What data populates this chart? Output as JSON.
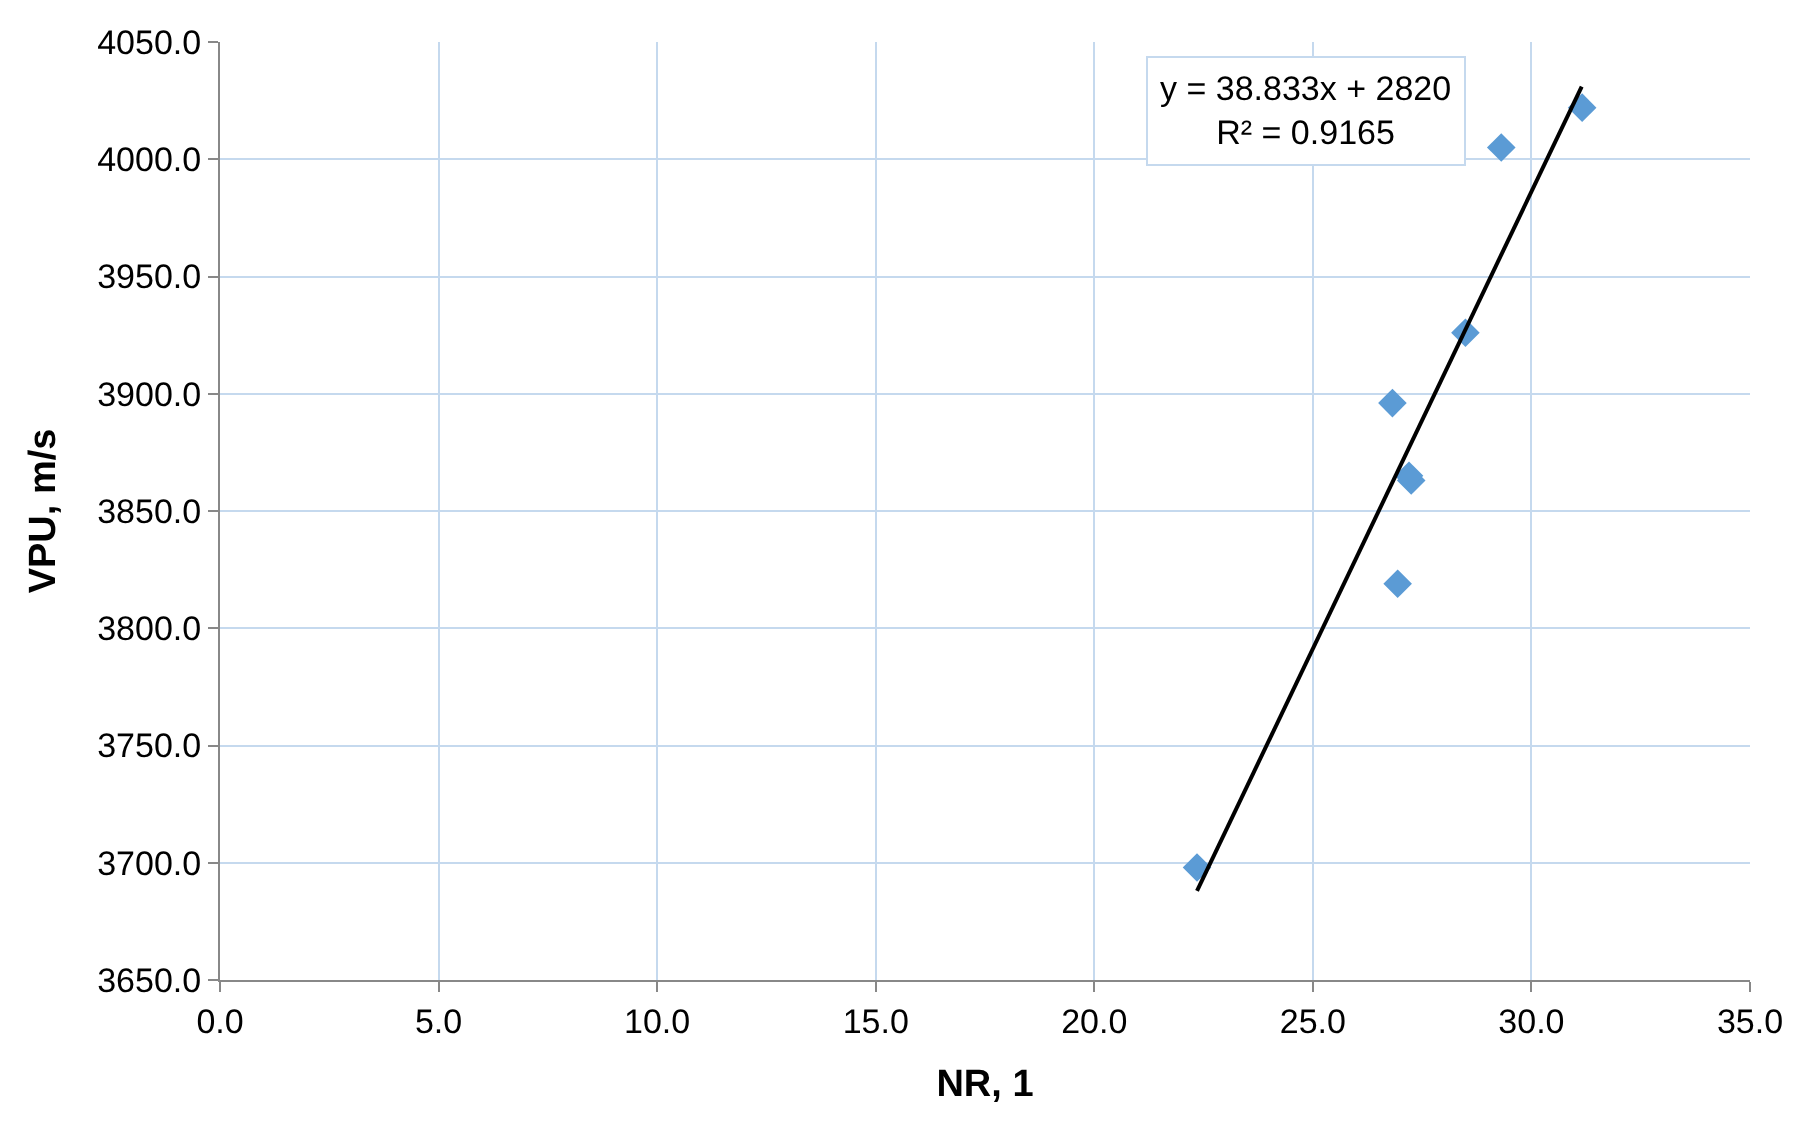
{
  "chart_data": {
    "type": "scatter",
    "xlabel": "NR, 1",
    "ylabel": "VPU, m/s",
    "annotations": [
      "y = 38.833x + 2820",
      "R² = 0.9165"
    ],
    "series": [
      {
        "color": "#5b9bd5",
        "marker": "diamond",
        "x": [
          22.35,
          26.82,
          27.25,
          27.2,
          26.94,
          28.49,
          29.31,
          31.16
        ],
        "values": [
          3698,
          3896,
          3863,
          3865,
          3819,
          3926,
          4005,
          4022
        ]
      },
      {
        "type": "line",
        "color": "#000000",
        "line_style": "solid",
        "x": [
          22.35,
          31.15
        ],
        "values": [
          3688,
          4031
        ]
      }
    ],
    "xlim": [
      0,
      35
    ],
    "xticks": [
      {
        "value": 0,
        "label": "0.0"
      },
      {
        "value": 5,
        "label": "5.0"
      },
      {
        "value": 10,
        "label": "10.0"
      },
      {
        "value": 15,
        "label": "15.0"
      },
      {
        "value": 20,
        "label": "20.0"
      },
      {
        "value": 25,
        "label": "25.0"
      },
      {
        "value": 30,
        "label": "30.0"
      },
      {
        "value": 35,
        "label": "35.0"
      }
    ],
    "ylim": [
      3650,
      4050
    ],
    "yticks": [
      {
        "value": 3650,
        "label": "3650.0"
      },
      {
        "value": 3700,
        "label": "3700.0"
      },
      {
        "value": 3750,
        "label": "3750.0"
      },
      {
        "value": 3800,
        "label": "3800.0"
      },
      {
        "value": 3850,
        "label": "3850.0"
      },
      {
        "value": 3900,
        "label": "3900.0"
      },
      {
        "value": 3950,
        "label": "3950.0"
      },
      {
        "value": 4000,
        "label": "4000.0"
      },
      {
        "value": 4050,
        "label": "4050.0"
      }
    ],
    "grid": true
  }
}
